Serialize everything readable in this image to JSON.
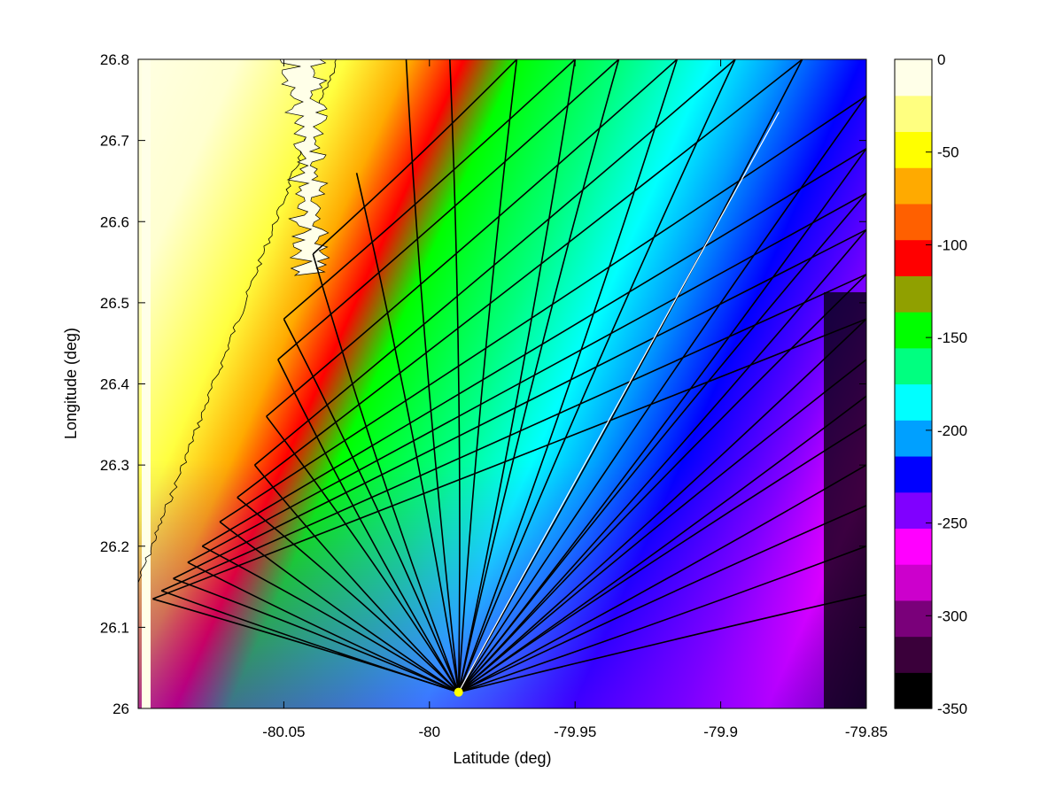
{
  "chart_data": {
    "type": "heatmap",
    "title": "",
    "xlabel": "Latitude (deg)",
    "ylabel": "Longitude (deg)",
    "xlim": [
      -80.1,
      -79.85
    ],
    "ylim": [
      26.0,
      26.8
    ],
    "x_ticks": [
      -80.05,
      -80.0,
      -79.95,
      -79.9,
      -79.85
    ],
    "x_tick_labels": [
      "-80.05",
      "-80",
      "-79.95",
      "-79.9",
      "-79.85"
    ],
    "y_ticks": [
      26.0,
      26.1,
      26.2,
      26.3,
      26.4,
      26.5,
      26.6,
      26.7,
      26.8
    ],
    "y_tick_labels": [
      "26",
      "26.1",
      "26.2",
      "26.3",
      "26.4",
      "26.5",
      "26.6",
      "26.7",
      "26.8"
    ],
    "colorbar": {
      "range": [
        -350,
        0
      ],
      "ticks": [
        0,
        -50,
        -100,
        -150,
        -200,
        -250,
        -300,
        -350
      ],
      "tick_labels": [
        "0",
        "-50",
        "-100",
        "-150",
        "-200",
        "-250",
        "-300",
        "-350"
      ],
      "colormap": [
        "#000000",
        "#3a003a",
        "#7a007a",
        "#cc00cc",
        "#ff00ff",
        "#8000ff",
        "#0000ff",
        "#00a0ff",
        "#00ffff",
        "#00ff80",
        "#00ff00",
        "#90a000",
        "#ff0000",
        "#ff6000",
        "#ffaa00",
        "#ffff00",
        "#ffff80",
        "#ffffe8"
      ]
    },
    "grid": false,
    "legend": "none",
    "source_point": {
      "x": -79.99,
      "y": 26.02,
      "color": "#ffff00"
    },
    "ray_color": "#000000",
    "highlight_ray": {
      "x": [
        -79.99,
        -79.88
      ],
      "y": [
        26.02,
        26.735
      ],
      "color": "#ffffff"
    },
    "rays": [
      {
        "x": [
          -79.99,
          -80.095
        ],
        "y": [
          26.02,
          26.135
        ]
      },
      {
        "x": [
          -79.99,
          -80.092
        ],
        "y": [
          26.02,
          26.145
        ]
      },
      {
        "x": [
          -79.99,
          -80.088
        ],
        "y": [
          26.02,
          26.16
        ]
      },
      {
        "x": [
          -79.99,
          -80.083
        ],
        "y": [
          26.02,
          26.18
        ]
      },
      {
        "x": [
          -79.99,
          -80.078
        ],
        "y": [
          26.02,
          26.2
        ]
      },
      {
        "x": [
          -79.99,
          -80.072
        ],
        "y": [
          26.02,
          26.23
        ]
      },
      {
        "x": [
          -79.99,
          -80.066
        ],
        "y": [
          26.02,
          26.26
        ]
      },
      {
        "x": [
          -79.99,
          -80.06
        ],
        "y": [
          26.02,
          26.3
        ]
      },
      {
        "x": [
          -79.99,
          -80.056
        ],
        "y": [
          26.02,
          26.36
        ]
      },
      {
        "x": [
          -79.99,
          -80.052
        ],
        "y": [
          26.02,
          26.43
        ]
      },
      {
        "x": [
          -79.99,
          -80.05
        ],
        "y": [
          26.02,
          26.48
        ]
      },
      {
        "x": [
          -79.99,
          -80.04
        ],
        "y": [
          26.02,
          26.56
        ]
      },
      {
        "x": [
          -79.99,
          -80.025
        ],
        "y": [
          26.02,
          26.66
        ]
      },
      {
        "x": [
          -79.99,
          -80.008
        ],
        "y": [
          26.02,
          26.8
        ]
      },
      {
        "x": [
          -79.99,
          -79.993
        ],
        "y": [
          26.02,
          26.8
        ]
      },
      {
        "x": [
          -79.99,
          -79.97
        ],
        "y": [
          26.02,
          26.8
        ]
      },
      {
        "x": [
          -79.99,
          -79.95
        ],
        "y": [
          26.02,
          26.8
        ]
      },
      {
        "x": [
          -79.99,
          -79.935
        ],
        "y": [
          26.02,
          26.8
        ]
      },
      {
        "x": [
          -79.99,
          -79.915
        ],
        "y": [
          26.02,
          26.8
        ]
      },
      {
        "x": [
          -79.99,
          -79.895
        ],
        "y": [
          26.02,
          26.8
        ]
      },
      {
        "x": [
          -79.99,
          -79.872
        ],
        "y": [
          26.02,
          26.8
        ]
      },
      {
        "x": [
          -79.99,
          -79.85
        ],
        "y": [
          26.02,
          26.755
        ]
      },
      {
        "x": [
          -79.99,
          -79.85
        ],
        "y": [
          26.02,
          26.69
        ]
      },
      {
        "x": [
          -79.99,
          -79.85
        ],
        "y": [
          26.02,
          26.635
        ]
      },
      {
        "x": [
          -79.99,
          -79.85
        ],
        "y": [
          26.02,
          26.59
        ]
      },
      {
        "x": [
          -79.99,
          -79.85
        ],
        "y": [
          26.02,
          26.535
        ]
      },
      {
        "x": [
          -79.99,
          -79.85
        ],
        "y": [
          26.02,
          26.48
        ]
      },
      {
        "x": [
          -79.99,
          -79.85
        ],
        "y": [
          26.02,
          26.43
        ]
      },
      {
        "x": [
          -79.99,
          -79.85
        ],
        "y": [
          26.02,
          26.385
        ]
      },
      {
        "x": [
          -79.99,
          -79.85
        ],
        "y": [
          26.02,
          26.35
        ]
      },
      {
        "x": [
          -79.99,
          -79.85
        ],
        "y": [
          26.02,
          26.3
        ]
      },
      {
        "x": [
          -79.99,
          -79.85
        ],
        "y": [
          26.02,
          26.25
        ]
      },
      {
        "x": [
          -79.99,
          -79.85
        ],
        "y": [
          26.02,
          26.2
        ]
      },
      {
        "x": [
          -79.99,
          -79.85
        ],
        "y": [
          26.02,
          26.14
        ]
      }
    ],
    "reflected_rays": [
      {
        "x": [
          -80.095,
          -79.85
        ],
        "y": [
          26.135,
          26.48
        ]
      },
      {
        "x": [
          -80.092,
          -79.85
        ],
        "y": [
          26.145,
          26.535
        ]
      },
      {
        "x": [
          -80.088,
          -79.85
        ],
        "y": [
          26.16,
          26.59
        ]
      },
      {
        "x": [
          -80.083,
          -79.85
        ],
        "y": [
          26.18,
          26.635
        ]
      },
      {
        "x": [
          -80.078,
          -79.85
        ],
        "y": [
          26.2,
          26.69
        ]
      },
      {
        "x": [
          -80.072,
          -79.85
        ],
        "y": [
          26.23,
          26.755
        ]
      },
      {
        "x": [
          -80.066,
          -79.872
        ],
        "y": [
          26.26,
          26.8
        ]
      },
      {
        "x": [
          -80.06,
          -79.895
        ],
        "y": [
          26.3,
          26.8
        ]
      },
      {
        "x": [
          -80.056,
          -79.915
        ],
        "y": [
          26.36,
          26.8
        ]
      },
      {
        "x": [
          -80.052,
          -79.935
        ],
        "y": [
          26.43,
          26.8
        ]
      },
      {
        "x": [
          -80.05,
          -79.95
        ],
        "y": [
          26.48,
          26.8
        ]
      },
      {
        "x": [
          -80.04,
          -79.97
        ],
        "y": [
          26.56,
          26.8
        ]
      }
    ]
  }
}
